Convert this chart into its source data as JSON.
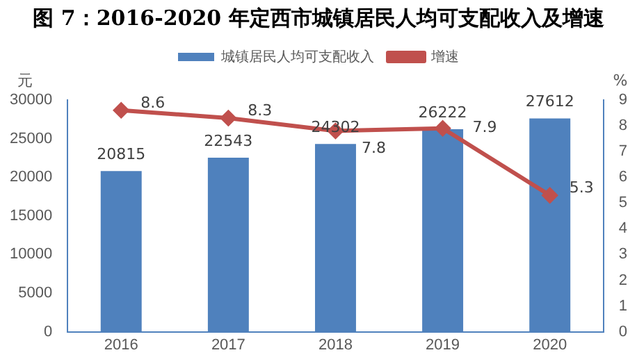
{
  "chart_data": {
    "type": "bar",
    "title": "图 7：2016-2020 年定西市城镇居民人均可支配收入及增速",
    "ylabel": "元",
    "y2label": "%",
    "categories": [
      "2016",
      "2017",
      "2018",
      "2019",
      "2020"
    ],
    "series": [
      {
        "name": "城镇居民人均可支配收入",
        "color": "#4f81bd",
        "values": [
          20815,
          22543,
          24302,
          26222,
          27612
        ]
      },
      {
        "name": "增速",
        "type": "line",
        "axis": "y2",
        "color": "#c0504d",
        "marker": "diamond",
        "values": [
          8.6,
          8.3,
          7.8,
          7.9,
          5.3
        ]
      }
    ],
    "ylim": [
      0,
      30000
    ],
    "yticks": [
      0,
      5000,
      10000,
      15000,
      20000,
      25000,
      30000
    ],
    "y2lim": [
      0,
      9
    ],
    "y2ticks": [
      0,
      1,
      2,
      3,
      4,
      5,
      6,
      7,
      8,
      9
    ],
    "grid": false,
    "legend": "top",
    "data_labels": true
  }
}
